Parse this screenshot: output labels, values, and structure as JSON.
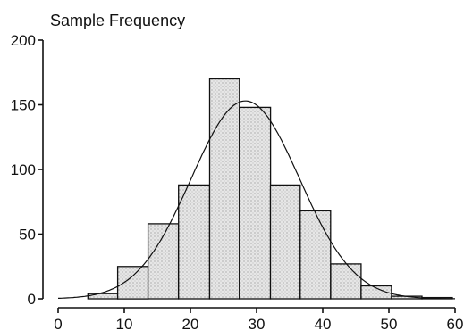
{
  "chart_data": {
    "type": "bar",
    "title": "Sample Frequency",
    "xlabel": "",
    "ylabel": "",
    "xlim": [
      0,
      60
    ],
    "ylim": [
      0,
      200
    ],
    "x_ticks": [
      "0",
      "10",
      "20",
      "30",
      "40",
      "50",
      "60"
    ],
    "y_ticks": [
      "0",
      "50",
      "100",
      "150",
      "200"
    ],
    "grid": false,
    "legend": "none",
    "bins": [
      {
        "x0": 4.5,
        "x1": 9.0,
        "value": 4
      },
      {
        "x0": 9.0,
        "x1": 13.6,
        "value": 25
      },
      {
        "x0": 13.6,
        "x1": 18.2,
        "value": 58
      },
      {
        "x0": 18.2,
        "x1": 22.9,
        "value": 88
      },
      {
        "x0": 22.9,
        "x1": 27.4,
        "value": 170
      },
      {
        "x0": 27.4,
        "x1": 32.1,
        "value": 148
      },
      {
        "x0": 32.1,
        "x1": 36.6,
        "value": 88
      },
      {
        "x0": 36.6,
        "x1": 41.2,
        "value": 68
      },
      {
        "x0": 41.2,
        "x1": 45.8,
        "value": 27
      },
      {
        "x0": 45.8,
        "x1": 50.4,
        "value": 10
      },
      {
        "x0": 50.4,
        "x1": 55.0,
        "value": 2
      },
      {
        "x0": 55.0,
        "x1": 59.6,
        "value": 1
      }
    ],
    "curve": {
      "type": "normal",
      "mean": 28.3,
      "sd": 8.2,
      "peak": 153
    }
  }
}
